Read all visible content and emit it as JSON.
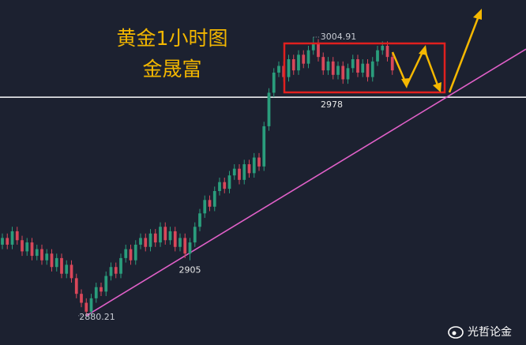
{
  "chart_data": {
    "type": "candlestick",
    "title": "黄金1小时图",
    "subtitle": "金晟富",
    "watermark": "光哲论金",
    "xlim": [
      -0.48,
      106.08
    ],
    "ylim": [
      2867.1,
      3021.5
    ],
    "grid": false,
    "up_color": "#2a9d7c",
    "down_color": "#d9475a",
    "open": [
      2912,
      2915,
      2912,
      2918,
      2914,
      2909,
      2913,
      2907,
      2910,
      2905,
      2908,
      2902,
      2906,
      2899,
      2903,
      2897,
      2890,
      2886,
      2882,
      2888,
      2893,
      2891,
      2898,
      2902,
      2899,
      2906,
      2910,
      2905,
      2912,
      2915,
      2911,
      2917,
      2913,
      2920,
      2914,
      2918,
      2911,
      2915,
      2908,
      2913,
      2920,
      2926,
      2932,
      2929,
      2936,
      2940,
      2937,
      2943,
      2946,
      2941,
      2948,
      2944,
      2951,
      2947,
      2965,
      2980,
      2989,
      2992,
      2987,
      2995,
      2990,
      2997,
      2993,
      2999,
      3002,
      2996,
      2990,
      2994,
      2988,
      2992,
      2986,
      2991,
      2995,
      2989,
      2993,
      2987,
      2994,
      2999,
      3001,
      2996
    ],
    "high": [
      2917,
      2917,
      2920,
      2920,
      2916,
      2915,
      2915,
      2912,
      2912,
      2910,
      2910,
      2908,
      2908,
      2905,
      2905,
      2899,
      2892,
      2888,
      2890,
      2895,
      2895,
      2900,
      2904,
      2904,
      2908,
      2912,
      2912,
      2914,
      2917,
      2917,
      2919,
      2919,
      2922,
      2922,
      2920,
      2920,
      2917,
      2917,
      2915,
      2922,
      2928,
      2934,
      2934,
      2938,
      2942,
      2942,
      2945,
      2948,
      2948,
      2950,
      2950,
      2953,
      2953,
      2967,
      2982,
      2991,
      2994,
      2994,
      2997,
      2997,
      2999,
      2999,
      3001,
      3004.91,
      3004,
      2998,
      2996,
      2996,
      2994,
      2994,
      2993,
      2997,
      2997,
      2995,
      2995,
      2996,
      3001,
      3003,
      3003,
      2998
    ],
    "low": [
      2910,
      2910,
      2910,
      2912,
      2907,
      2907,
      2905,
      2905,
      2903,
      2903,
      2900,
      2900,
      2897,
      2897,
      2895,
      2888,
      2884,
      2880.21,
      2880,
      2886,
      2889,
      2889,
      2896,
      2897,
      2897,
      2904,
      2903,
      2903,
      2910,
      2909,
      2909,
      2911,
      2911,
      2912,
      2912,
      2909,
      2909,
      2906,
      2905,
      2911,
      2918,
      2924,
      2927,
      2927,
      2934,
      2935,
      2935,
      2941,
      2939,
      2939,
      2942,
      2942,
      2945,
      2945,
      2963,
      2978,
      2987,
      2985,
      2985,
      2988,
      2988,
      2991,
      2991,
      2997,
      2994,
      2988,
      2988,
      2986,
      2986,
      2984,
      2984,
      2989,
      2987,
      2987,
      2985,
      2985,
      2992,
      2997,
      2994,
      2988
    ],
    "close": [
      2915,
      2912,
      2918,
      2914,
      2909,
      2913,
      2907,
      2910,
      2905,
      2908,
      2902,
      2906,
      2899,
      2903,
      2897,
      2890,
      2886,
      2882,
      2888,
      2893,
      2891,
      2898,
      2902,
      2899,
      2906,
      2910,
      2905,
      2912,
      2915,
      2911,
      2917,
      2913,
      2920,
      2914,
      2918,
      2911,
      2915,
      2908,
      2913,
      2920,
      2926,
      2932,
      2929,
      2936,
      2940,
      2937,
      2943,
      2946,
      2941,
      2948,
      2944,
      2951,
      2947,
      2965,
      2980,
      2989,
      2992,
      2987,
      2995,
      2990,
      2997,
      2993,
      2999,
      3002,
      2996,
      2990,
      2994,
      2988,
      2992,
      2986,
      2991,
      2995,
      2989,
      2993,
      2987,
      2994,
      2999,
      3001,
      2996,
      2990
    ],
    "hline": {
      "value": 2978,
      "label": "2978",
      "color": "#ffffff"
    },
    "trendline": {
      "x": [
        17,
        90
      ],
      "values": [
        2880.21,
        2978
      ],
      "color": "#e060c8"
    },
    "annotations": [
      {
        "x": 63,
        "value": 3004.91,
        "label": "3004.91"
      },
      {
        "x": 38,
        "value": 2905,
        "label": "2905"
      },
      {
        "x": 17,
        "value": 2880.21,
        "label": "2880.21"
      }
    ]
  }
}
